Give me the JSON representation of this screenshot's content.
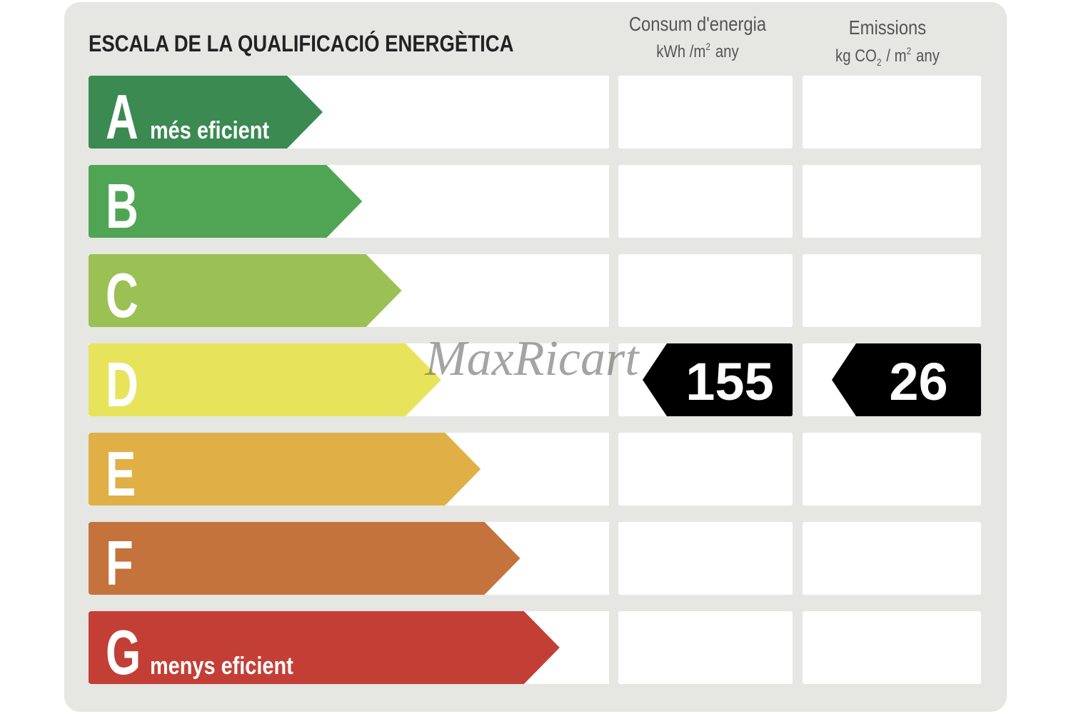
{
  "title": "ESCALA DE LA QUALIFICACIÓ ENERGÈTICA",
  "energy_header": {
    "title": "Consum d'energia",
    "unit": [
      "kWh /m",
      "2",
      "any"
    ]
  },
  "emissions_header": {
    "title": "Emissions",
    "unit": [
      "kg CO",
      "2",
      "/ m",
      "2",
      "any"
    ]
  },
  "ratings": [
    {
      "letter": "A",
      "label": "més eficient",
      "color": "#3b8a52"
    },
    {
      "letter": "B",
      "color": "#50a555"
    },
    {
      "letter": "C",
      "color": "#9bc155"
    },
    {
      "letter": "D",
      "color": "#e7e45c",
      "energy": 155,
      "emissions": 26
    },
    {
      "letter": "E",
      "color": "#e0b047"
    },
    {
      "letter": "F",
      "color": "#c4733d"
    },
    {
      "letter": "G",
      "label": "menys eficient",
      "color": "#c33f36"
    }
  ],
  "watermark": "MaxRicart"
}
